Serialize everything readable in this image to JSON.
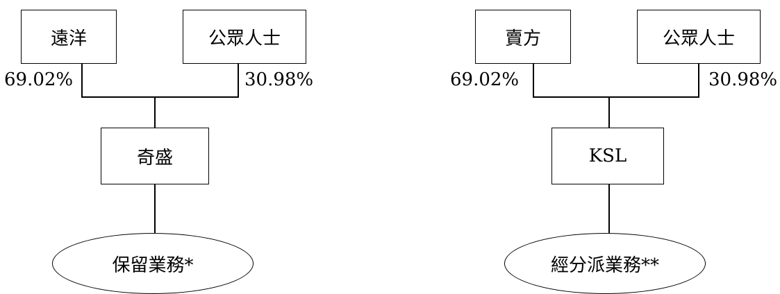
{
  "left": {
    "parent_a": "遠洋",
    "parent_b": "公眾人士",
    "pct_a": "69.02%",
    "pct_b": "30.98%",
    "company": "奇盛",
    "business": "保留業務*"
  },
  "right": {
    "parent_a": "賣方",
    "parent_b": "公眾人士",
    "pct_a": "69.02%",
    "pct_b": "30.98%",
    "company": "KSL",
    "business": "經分派業務**"
  }
}
